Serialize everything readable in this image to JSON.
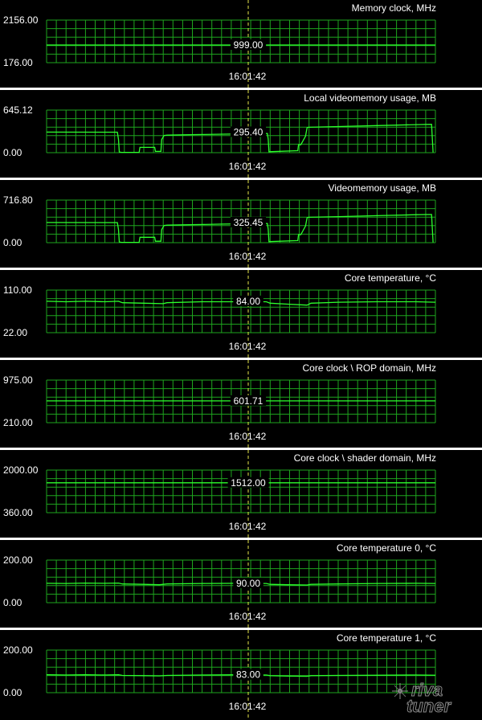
{
  "timestamp": "16:01:42",
  "cursor_color": "#e6e64a",
  "grid_color": "#1ea51e",
  "line_color": "#2cff2c",
  "watermark": {
    "text_top": "riva",
    "text_bottom": "tuner"
  },
  "chart_data": [
    {
      "type": "line",
      "title": "Memory clock, MHz",
      "ylim": [
        176.0,
        2156.0
      ],
      "ymax_label": "2156.00",
      "ymin_label": "176.00",
      "current_label": "999.00",
      "x": [
        0,
        100
      ],
      "series": [
        {
          "values": [
            999,
            999
          ]
        }
      ]
    },
    {
      "type": "line",
      "title": "Local videomemory usage, MB",
      "ylim": [
        0.0,
        645.12
      ],
      "ymax_label": "645.12",
      "ymin_label": "0.00",
      "current_label": "295.40",
      "x": [
        0,
        18.2,
        18.5,
        18.7,
        19.3,
        23.8,
        24.0,
        27.8,
        28.0,
        29.4,
        29.6,
        30.2,
        31.0,
        35.0,
        40.0,
        45.0,
        50.0,
        55.0,
        56.8,
        57.0,
        57.2,
        64.6,
        64.8,
        65.4,
        66.6,
        67.0,
        67.4,
        75.0,
        85.0,
        95.0,
        99.0,
        99.4
      ],
      "series": [
        {
          "values": [
            312,
            310,
            200,
            10,
            5,
            5,
            80,
            80,
            20,
            20,
            200,
            260,
            265,
            270,
            275,
            280,
            285,
            290,
            290,
            200,
            15,
            30,
            120,
            120,
            250,
            380,
            385,
            395,
            410,
            425,
            430,
            5
          ]
        }
      ]
    },
    {
      "type": "line",
      "title": "Videomemory usage, MB",
      "ylim": [
        0.0,
        716.8
      ],
      "ymax_label": "716.80",
      "ymin_label": "0.00",
      "current_label": "325.45",
      "x": [
        0,
        18.2,
        18.5,
        18.7,
        19.3,
        23.8,
        24.0,
        27.8,
        28.0,
        29.4,
        29.6,
        30.2,
        31.0,
        35.0,
        40.0,
        45.0,
        50.0,
        55.0,
        56.8,
        57.0,
        57.2,
        64.6,
        64.8,
        65.4,
        66.6,
        67.0,
        67.4,
        75.0,
        85.0,
        95.0,
        99.0,
        99.4
      ],
      "series": [
        {
          "values": [
            340,
            338,
            220,
            12,
            6,
            6,
            90,
            90,
            25,
            25,
            220,
            290,
            295,
            300,
            305,
            312,
            318,
            322,
            322,
            220,
            18,
            35,
            135,
            135,
            280,
            420,
            428,
            438,
            455,
            470,
            475,
            6
          ]
        }
      ]
    },
    {
      "type": "line",
      "title": "Core temperature, °C",
      "ylim": [
        22.0,
        110.0
      ],
      "ymax_label": "110.00",
      "ymin_label": "22.00",
      "current_label": "84.00",
      "x": [
        0,
        5,
        10,
        15,
        18.5,
        19.5,
        25,
        30,
        31,
        40,
        50,
        56.5,
        57.5,
        62,
        67,
        68,
        75,
        85,
        95,
        100
      ],
      "series": [
        {
          "values": [
            87,
            86,
            87,
            86,
            87,
            84,
            83,
            82,
            84,
            86,
            86,
            86,
            83,
            81,
            79,
            83,
            85,
            86,
            86,
            85
          ]
        }
      ]
    },
    {
      "type": "line",
      "title": "Core clock \\ ROP domain, MHz",
      "ylim": [
        210.0,
        975.0
      ],
      "ymax_label": "975.00",
      "ymin_label": "210.00",
      "current_label": "601.71",
      "x": [
        0,
        100
      ],
      "series": [
        {
          "values": [
            601.71,
            601.71
          ]
        }
      ]
    },
    {
      "type": "line",
      "title": "Core clock \\ shader domain, MHz",
      "ylim": [
        360.0,
        2000.0
      ],
      "ymax_label": "2000.00",
      "ymin_label": "360.00",
      "current_label": "1512.00",
      "x": [
        0,
        100
      ],
      "series": [
        {
          "values": [
            1512,
            1512
          ]
        }
      ]
    },
    {
      "type": "line",
      "title": "Core temperature 0, °C",
      "ylim": [
        0.0,
        200.0
      ],
      "ymax_label": "200.00",
      "ymin_label": "0.00",
      "current_label": "90.00",
      "x": [
        0,
        5,
        10,
        15,
        18.5,
        19.5,
        25,
        29,
        31,
        40,
        50,
        56.5,
        57.5,
        62,
        67,
        68,
        75,
        85,
        95,
        100
      ],
      "series": [
        {
          "values": [
            91,
            90,
            92,
            91,
            92,
            88,
            86,
            84,
            88,
            90,
            91,
            90,
            86,
            84,
            83,
            86,
            88,
            90,
            91,
            90
          ]
        }
      ]
    },
    {
      "type": "line",
      "title": "Core temperature 1, °C",
      "ylim": [
        0.0,
        200.0
      ],
      "ymax_label": "200.00",
      "ymin_label": "0.00",
      "current_label": "83.00",
      "x": [
        0,
        5,
        10,
        15,
        18.5,
        19.5,
        25,
        29,
        31,
        40,
        50,
        56.5,
        57.5,
        62,
        67,
        68,
        75,
        85,
        95,
        100
      ],
      "series": [
        {
          "values": [
            84,
            83,
            84,
            83,
            84,
            81,
            80,
            79,
            81,
            83,
            84,
            83,
            80,
            78,
            77,
            80,
            81,
            82,
            83,
            82
          ]
        }
      ]
    }
  ]
}
